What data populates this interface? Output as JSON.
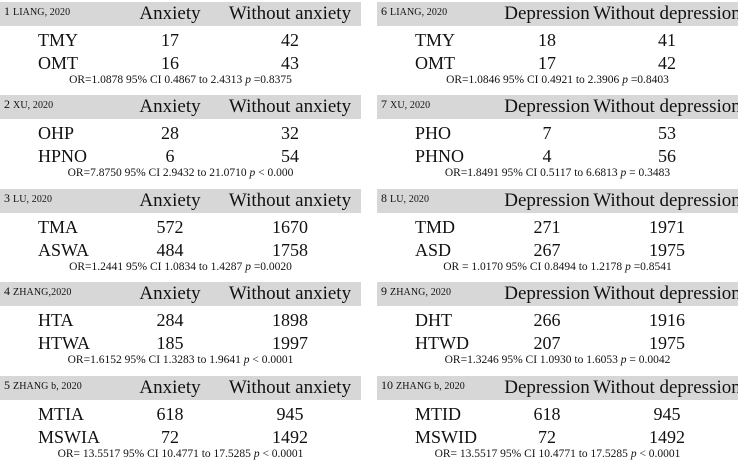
{
  "panels": [
    {
      "num": "1",
      "author": "LIANG, 2020",
      "col1": "Anxiety",
      "col2": "Without anxiety",
      "rows": [
        {
          "label": "TMY",
          "v1": "17",
          "v2": "42"
        },
        {
          "label": "OMT",
          "v1": "16",
          "v2": "43"
        }
      ],
      "or_text": "OR=1.0878 95% CI 0.4867 to 2.4313 ",
      "p_label": "p",
      "p_text": " =0.8375"
    },
    {
      "num": "6",
      "author": "LIANG, 2020",
      "col1": "Depression",
      "col2": "Without depression",
      "rows": [
        {
          "label": "TMY",
          "v1": "18",
          "v2": "41"
        },
        {
          "label": "OMT",
          "v1": "17",
          "v2": "42"
        }
      ],
      "or_text": "OR=1.0846 95% CI 0.4921 to 2.3906 ",
      "p_label": "p",
      "p_text": " =0.8403"
    },
    {
      "num": "2",
      "author": "XU, 2020",
      "col1": "Anxiety",
      "col2": "Without anxiety",
      "rows": [
        {
          "label": "OHP",
          "v1": "28",
          "v2": "32"
        },
        {
          "label": "HPNO",
          "v1": "6",
          "v2": "54"
        }
      ],
      "or_text": "OR=7.8750 95% CI 2.9432 to 21.0710 ",
      "p_label": "p",
      "p_text": " < 0.000"
    },
    {
      "num": "7",
      "author": "XU, 2020",
      "col1": "Depression",
      "col2": "Without depression",
      "rows": [
        {
          "label": "PHO",
          "v1": "7",
          "v2": "53"
        },
        {
          "label": "PHNO",
          "v1": "4",
          "v2": "56"
        }
      ],
      "or_text": "OR=1.8491 95% CI 0.5117 to 6.6813 ",
      "p_label": "p",
      "p_text": " = 0.3483"
    },
    {
      "num": "3",
      "author": "LU, 2020",
      "col1": "Anxiety",
      "col2": "Without anxiety",
      "rows": [
        {
          "label": "TMA",
          "v1": "572",
          "v2": "1670"
        },
        {
          "label": "ASWA",
          "v1": "484",
          "v2": "1758"
        }
      ],
      "or_text": "OR=1.2441 95% CI 1.0834 to 1.4287 ",
      "p_label": "p",
      "p_text": " =0.0020"
    },
    {
      "num": "8",
      "author": "LU, 2020",
      "col1": "Depression",
      "col2": "Without depression",
      "rows": [
        {
          "label": "TMD",
          "v1": "271",
          "v2": "1971"
        },
        {
          "label": "ASD",
          "v1": "267",
          "v2": "1975"
        }
      ],
      "or_text": "OR = 1.0170 95% CI 0.8494 to 1.2178 ",
      "p_label": "p",
      "p_text": " =0.8541"
    },
    {
      "num": "4",
      "author": "ZHANG,2020",
      "col1": "Anxiety",
      "col2": "Without anxiety",
      "rows": [
        {
          "label": "HTA",
          "v1": "284",
          "v2": "1898"
        },
        {
          "label": "HTWA",
          "v1": "185",
          "v2": "1997"
        }
      ],
      "or_text": "OR=1.6152 95% CI 1.3283 to 1.9641 ",
      "p_label": "p",
      "p_text": " < 0.0001"
    },
    {
      "num": "9",
      "author": "ZHANG, 2020",
      "col1": "Depression",
      "col2": "Without depression",
      "rows": [
        {
          "label": "DHT",
          "v1": "266",
          "v2": "1916"
        },
        {
          "label": "HTWD",
          "v1": "207",
          "v2": "1975"
        }
      ],
      "or_text": "OR=1.3246 95% CI 1.0930 to 1.6053 ",
      "p_label": "p",
      "p_text": " = 0.0042"
    },
    {
      "num": "5",
      "author": "ZHANG b, 2020",
      "col1": "Anxiety",
      "col2": "Without anxiety",
      "rows": [
        {
          "label": "MTIA",
          "v1": "618",
          "v2": "945"
        },
        {
          "label": "MSWIA",
          "v1": "72",
          "v2": "1492"
        }
      ],
      "or_text": "OR= 13.5517 95% CI 10.4771 to 17.5285 ",
      "p_label": "p",
      "p_text": " < 0.0001"
    },
    {
      "num": "10",
      "author": "ZHANG b, 2020",
      "col1": "Depression",
      "col2": "Without depression",
      "rows": [
        {
          "label": "MTID",
          "v1": "618",
          "v2": "945"
        },
        {
          "label": "MSWID",
          "v1": "72",
          "v2": "1492"
        }
      ],
      "or_text": "OR= 13.5517 95% CI 10.4771 to 17.5285 ",
      "p_label": "p",
      "p_text": " < 0.0001"
    }
  ],
  "colors": {
    "header_bg": "#d7d7d7",
    "text": "#111111",
    "background": "#ffffff"
  }
}
